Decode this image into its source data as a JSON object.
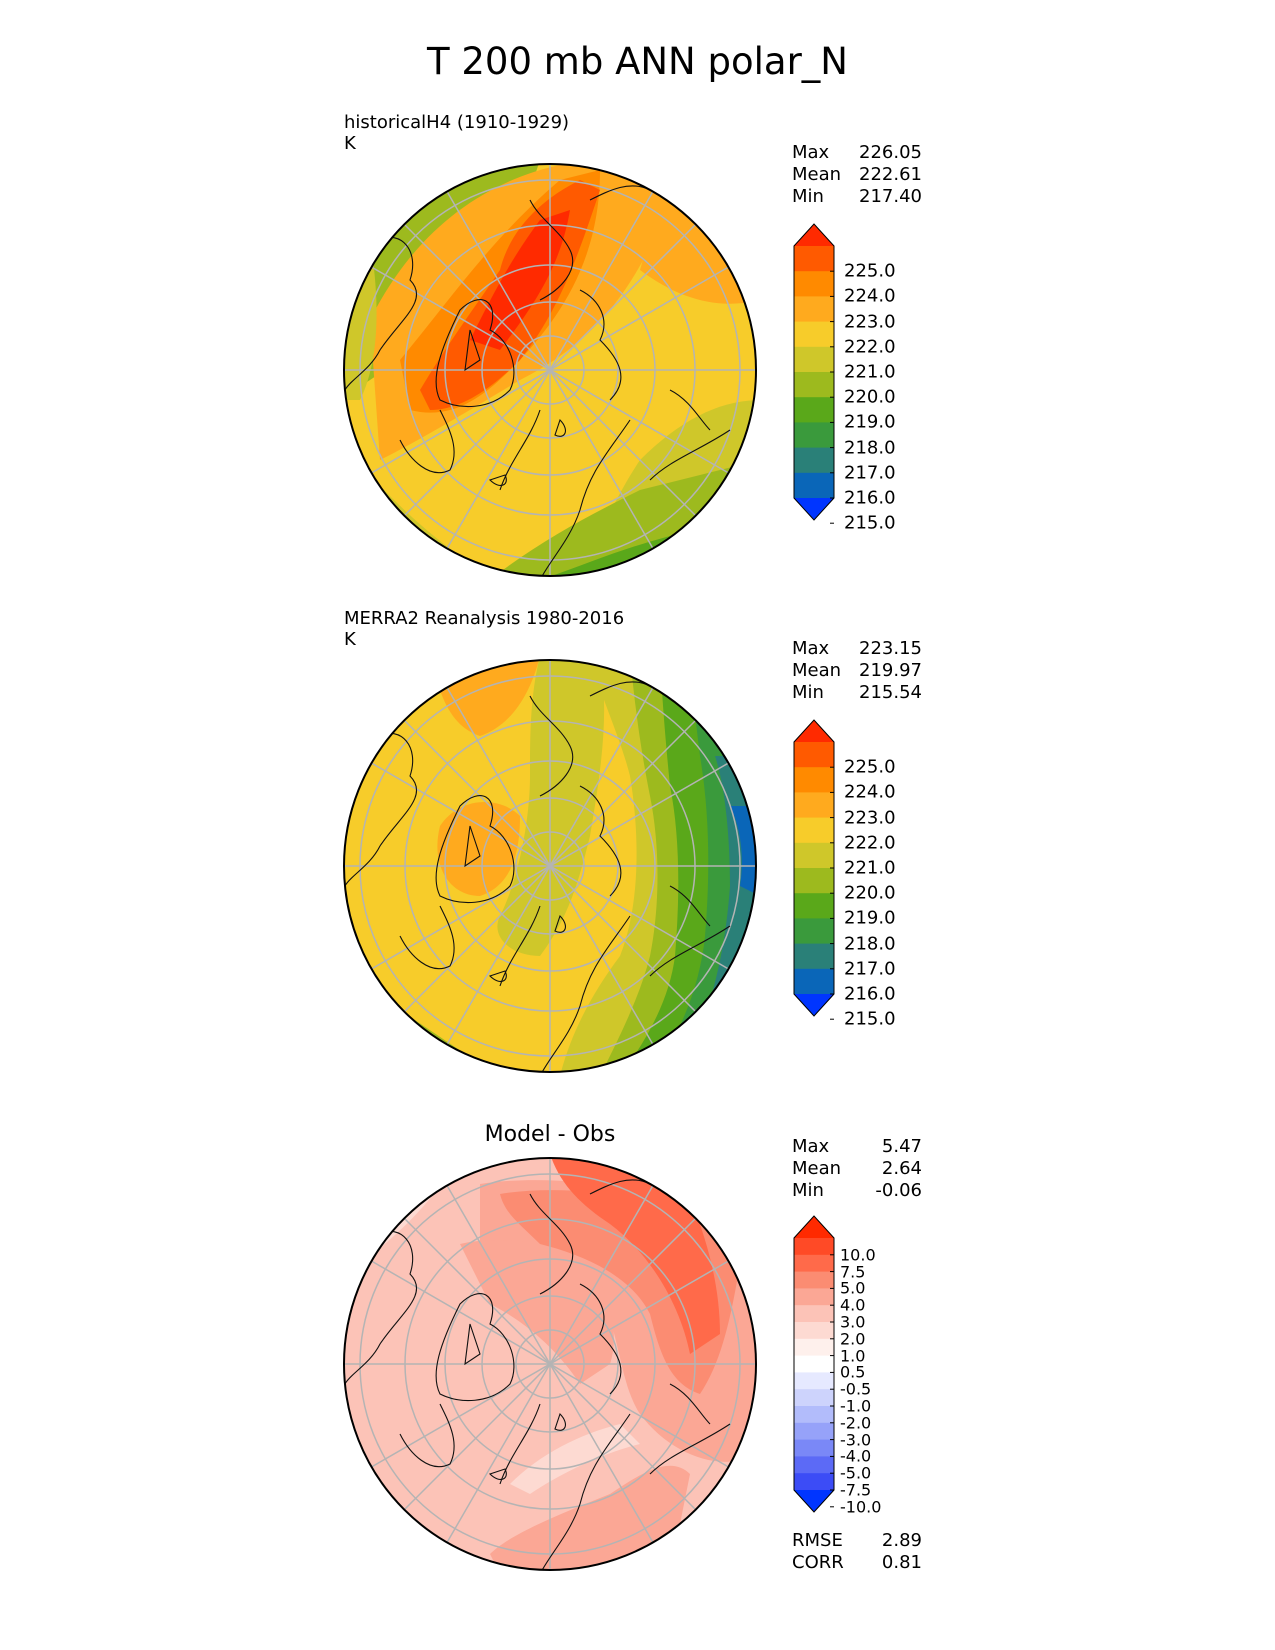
{
  "title": "T 200 mb ANN polar_N",
  "panels": [
    {
      "id": "test",
      "name_line1": "historicalH4 (1910-1929)",
      "units": "K",
      "stats": [
        {
          "label": "Max",
          "value": "226.05"
        },
        {
          "label": "Mean",
          "value": "222.61"
        },
        {
          "label": "Min",
          "value": "217.40"
        }
      ]
    },
    {
      "id": "ref",
      "name_line1": "MERRA2 Reanalysis 1980-2016",
      "units": "K",
      "stats": [
        {
          "label": "Max",
          "value": "223.15"
        },
        {
          "label": "Mean",
          "value": "219.97"
        },
        {
          "label": "Min",
          "value": "215.54"
        }
      ]
    },
    {
      "id": "diff",
      "name_line1": "Model - Obs",
      "stats": [
        {
          "label": "Max",
          "value": "5.47"
        },
        {
          "label": "Mean",
          "value": "2.64"
        },
        {
          "label": "Min",
          "value": "-0.06"
        }
      ],
      "metrics": [
        {
          "label": "RMSE",
          "value": "2.89"
        },
        {
          "label": "CORR",
          "value": "0.81"
        }
      ]
    }
  ],
  "colorbar_main": {
    "ticks": [
      "225.0",
      "224.0",
      "223.0",
      "222.0",
      "221.0",
      "220.0",
      "219.0",
      "218.0",
      "217.0",
      "216.0",
      "215.0"
    ],
    "colors": [
      "#ff2a00",
      "#ff5a00",
      "#ff8a00",
      "#ffaa1e",
      "#f7cc2a",
      "#cfc72a",
      "#9dba1e",
      "#5aa81a",
      "#3a9a3c",
      "#2a8078",
      "#0a66b8",
      "#0035ff"
    ]
  },
  "colorbar_diff": {
    "ticks": [
      "10.0",
      "7.5",
      "5.0",
      "4.0",
      "3.0",
      "2.0",
      "1.0",
      "0.5",
      "-0.5",
      "-1.0",
      "-2.0",
      "-3.0",
      "-4.0",
      "-5.0",
      "-7.5",
      "-10.0"
    ],
    "colors": [
      "#ff2a00",
      "#ff4a26",
      "#ff6a4a",
      "#fb8c72",
      "#fba795",
      "#fcc3b7",
      "#fddad2",
      "#fef0ec",
      "#ffffff",
      "#e6e9ff",
      "#cdd3fc",
      "#b2bcfb",
      "#96a2f9",
      "#7a88f7",
      "#5c6af6",
      "#3c4cf6",
      "#0035ff"
    ]
  },
  "chart_data": [
    {
      "type": "heatmap",
      "title": "historicalH4 (1910-1929)",
      "units": "K",
      "projection": "north polar stereographic",
      "color_levels": [
        215.0,
        216.0,
        217.0,
        218.0,
        219.0,
        220.0,
        221.0,
        222.0,
        223.0,
        224.0,
        225.0
      ],
      "max": 226.05,
      "mean": 222.61,
      "min": 217.4
    },
    {
      "type": "heatmap",
      "title": "MERRA2 Reanalysis 1980-2016",
      "units": "K",
      "projection": "north polar stereographic",
      "color_levels": [
        215.0,
        216.0,
        217.0,
        218.0,
        219.0,
        220.0,
        221.0,
        222.0,
        223.0,
        224.0,
        225.0
      ],
      "max": 223.15,
      "mean": 219.97,
      "min": 215.54
    },
    {
      "type": "heatmap",
      "title": "Model - Obs",
      "projection": "north polar stereographic",
      "color_levels": [
        -10.0,
        -7.5,
        -5.0,
        -4.0,
        -3.0,
        -2.0,
        -1.0,
        -0.5,
        0.5,
        1.0,
        2.0,
        3.0,
        4.0,
        5.0,
        7.5,
        10.0
      ],
      "max": 5.47,
      "mean": 2.64,
      "min": -0.06,
      "rmse": 2.89,
      "corr": 0.81
    }
  ]
}
